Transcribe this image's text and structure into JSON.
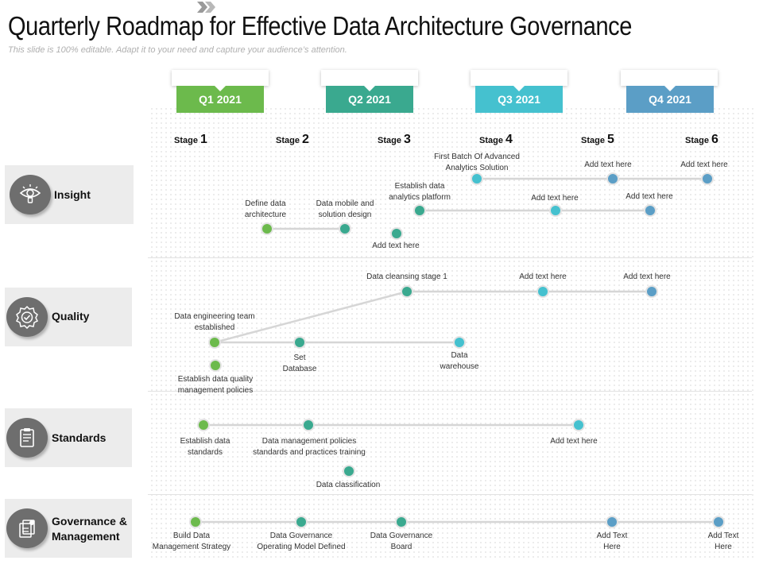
{
  "header": {
    "title": "Quarterly Roadmap for Effective Data Architecture Governance",
    "subtitle": "This slide is 100% editable. Adapt it to your need and capture your audience’s attention."
  },
  "quarters": [
    {
      "label": "Q1 2021",
      "color": "#6cba4c"
    },
    {
      "label": "Q2 2021",
      "color": "#3aa98f"
    },
    {
      "label": "Q3 2021",
      "color": "#45c1cf"
    },
    {
      "label": "Q4 2021",
      "color": "#5b9ec6"
    }
  ],
  "stages": [
    {
      "word": "Stage",
      "num": "1"
    },
    {
      "word": "Stage",
      "num": "2"
    },
    {
      "word": "Stage",
      "num": "3"
    },
    {
      "word": "Stage",
      "num": "4"
    },
    {
      "word": "Stage",
      "num": "5"
    },
    {
      "word": "Stage",
      "num": "6"
    }
  ],
  "categories": [
    {
      "label": "Insight",
      "icon": "eye-bulb-icon"
    },
    {
      "label": "Quality",
      "icon": "quality-badge-icon"
    },
    {
      "label": "Standards",
      "icon": "clipboard-icon"
    },
    {
      "label": "Governance &\nManagement",
      "icon": "governance-icon"
    }
  ],
  "milestones": {
    "insight": [
      "Define data\narchitecture",
      "Data mobile and\nsolution design",
      "Add text here",
      "Establish data\nanalytics platform",
      "Add text here",
      "Add text here",
      "First Batch Of Advanced\nAnalytics Solution",
      "Add text here",
      "Add text here"
    ],
    "quality": [
      "Data engineering team\nestablished",
      "Establish data quality\nmanagement policies",
      "Set\nDatabase",
      "Data\nwarehouse",
      "Data cleansing stage 1",
      "Add text here",
      "Add text here"
    ],
    "standards": [
      "Establish data\nstandards",
      "Data management policies\nstandards and practices training",
      "Data classification",
      "Add text here"
    ],
    "governance": [
      "Build Data\nManagement Strategy",
      "Data Governance\nOperating Model Defined",
      "Data Governance\nBoard",
      "Add Text\nHere",
      "Add Text\nHere"
    ]
  },
  "colors": {
    "green": "#6cba4c",
    "teal": "#3aa98f",
    "cyan": "#45c1cf",
    "blue": "#5b9ec6",
    "line": "#d6d6d6"
  }
}
